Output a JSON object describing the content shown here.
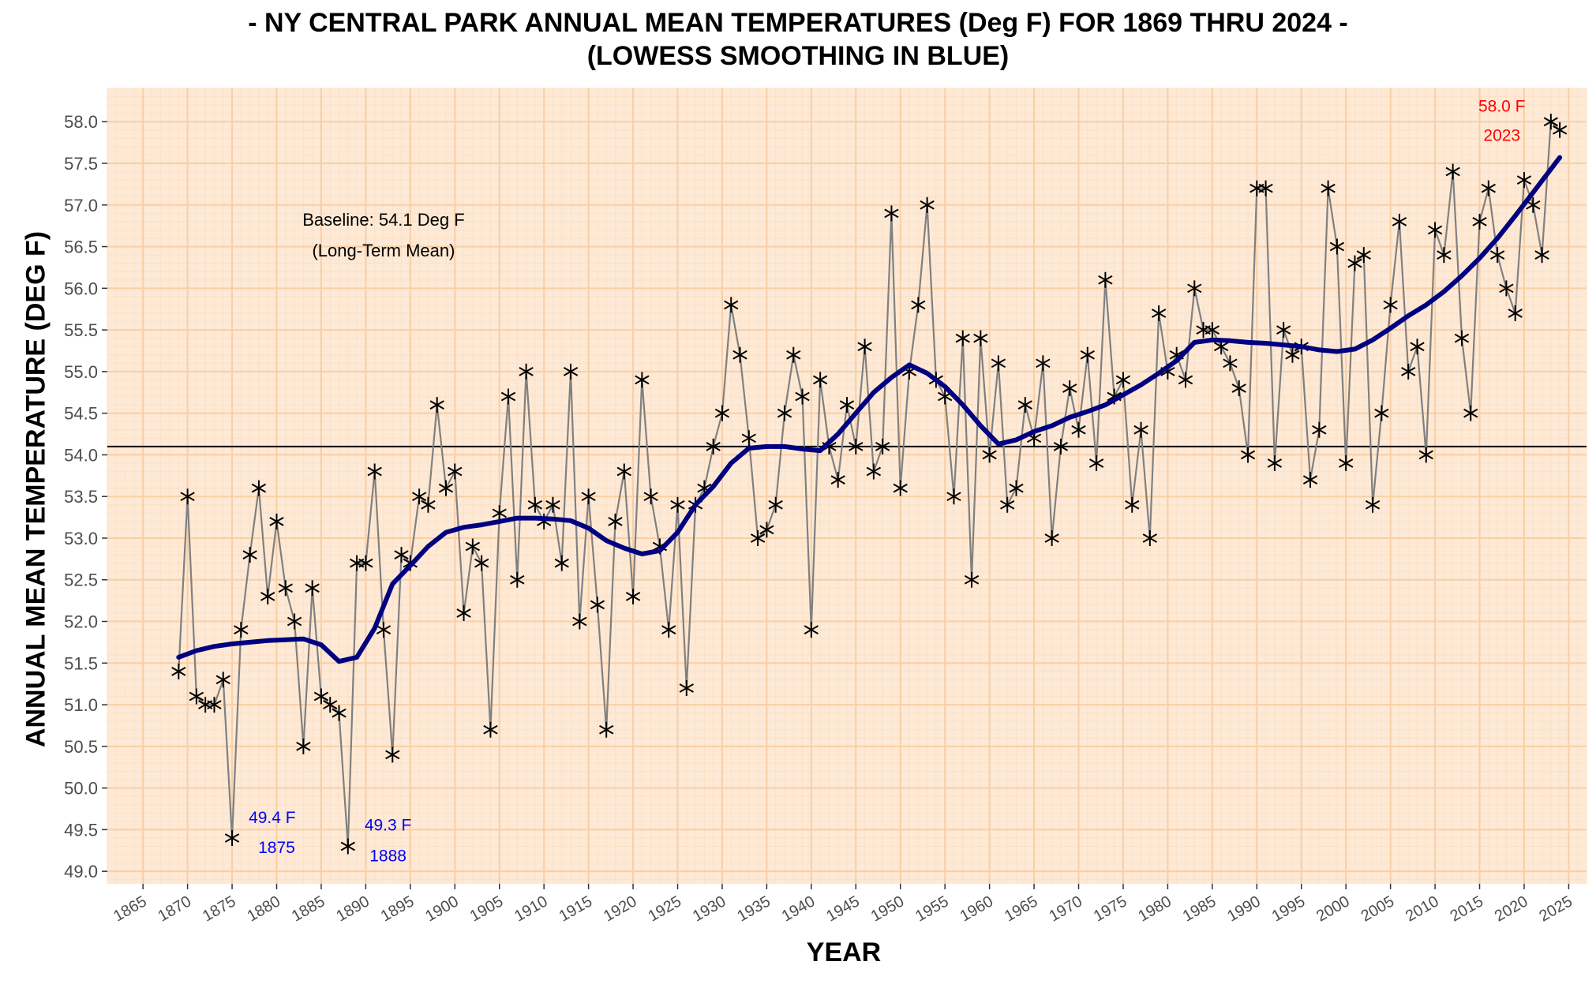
{
  "chart_data": {
    "type": "line",
    "title_line1": "- NY CENTRAL PARK ANNUAL MEAN TEMPERATURES (Deg F) FOR 1869 THRU 2024 -",
    "title_line2": "(LOWESS SMOOTHING IN BLUE)",
    "xlabel": "YEAR",
    "ylabel": "ANNUAL MEAN TEMPERATURE (DEG F)",
    "xlim": [
      1861,
      2027
    ],
    "ylim": [
      48.85,
      58.4
    ],
    "x_ticks": [
      1865,
      1870,
      1875,
      1880,
      1885,
      1890,
      1895,
      1900,
      1905,
      1910,
      1915,
      1920,
      1925,
      1930,
      1935,
      1940,
      1945,
      1950,
      1955,
      1960,
      1965,
      1970,
      1975,
      1980,
      1985,
      1990,
      1995,
      2000,
      2005,
      2010,
      2015,
      2020,
      2025
    ],
    "y_ticks": [
      "49.0",
      "49.5",
      "50.0",
      "50.5",
      "51.0",
      "51.5",
      "52.0",
      "52.5",
      "53.0",
      "53.5",
      "54.0",
      "54.5",
      "55.0",
      "55.5",
      "56.0",
      "56.5",
      "57.0",
      "57.5",
      "58.0"
    ],
    "grid": true,
    "colors": {
      "panel_background": "#fde9d5",
      "grid_major": "#f9cfa5",
      "grid_minor": "#fbe0c4",
      "raw_line": "#808080",
      "marker": "#000000",
      "smooth_line": "#000080",
      "baseline": "#000000",
      "min_annotation": "#0000ff",
      "max_annotation": "#ff0000"
    },
    "series": [
      {
        "name": "annual mean",
        "x": [
          1869,
          1870,
          1871,
          1872,
          1873,
          1874,
          1875,
          1876,
          1877,
          1878,
          1879,
          1880,
          1881,
          1882,
          1883,
          1884,
          1885,
          1886,
          1887,
          1888,
          1889,
          1890,
          1891,
          1892,
          1893,
          1894,
          1895,
          1896,
          1897,
          1898,
          1899,
          1900,
          1901,
          1902,
          1903,
          1904,
          1905,
          1906,
          1907,
          1908,
          1909,
          1910,
          1911,
          1912,
          1913,
          1914,
          1915,
          1916,
          1917,
          1918,
          1919,
          1920,
          1921,
          1922,
          1923,
          1924,
          1925,
          1926,
          1927,
          1928,
          1929,
          1930,
          1931,
          1932,
          1933,
          1934,
          1935,
          1936,
          1937,
          1938,
          1939,
          1940,
          1941,
          1942,
          1943,
          1944,
          1945,
          1946,
          1947,
          1948,
          1949,
          1950,
          1951,
          1952,
          1953,
          1954,
          1955,
          1956,
          1957,
          1958,
          1959,
          1960,
          1961,
          1962,
          1963,
          1964,
          1965,
          1966,
          1967,
          1968,
          1969,
          1970,
          1971,
          1972,
          1973,
          1974,
          1975,
          1976,
          1977,
          1978,
          1979,
          1980,
          1981,
          1982,
          1983,
          1984,
          1985,
          1986,
          1987,
          1988,
          1989,
          1990,
          1991,
          1992,
          1993,
          1994,
          1995,
          1996,
          1997,
          1998,
          1999,
          2000,
          2001,
          2002,
          2003,
          2004,
          2005,
          2006,
          2007,
          2008,
          2009,
          2010,
          2011,
          2012,
          2013,
          2014,
          2015,
          2016,
          2017,
          2018,
          2019,
          2020,
          2021,
          2022,
          2023,
          2024
        ],
        "y": [
          51.4,
          53.5,
          51.1,
          51.0,
          51.0,
          51.3,
          49.4,
          51.9,
          52.8,
          53.6,
          52.3,
          53.2,
          52.4,
          52.0,
          50.5,
          52.4,
          51.1,
          51.0,
          50.9,
          49.3,
          52.7,
          52.7,
          53.8,
          51.9,
          50.4,
          52.8,
          52.7,
          53.5,
          53.4,
          54.6,
          53.6,
          53.8,
          52.1,
          52.9,
          52.7,
          50.7,
          53.3,
          54.7,
          52.5,
          55.0,
          53.4,
          53.2,
          53.4,
          52.7,
          55.0,
          52.0,
          53.5,
          52.2,
          50.7,
          53.2,
          53.8,
          52.3,
          54.9,
          53.5,
          52.9,
          51.9,
          53.4,
          51.2,
          53.4,
          53.6,
          54.1,
          54.5,
          55.8,
          55.2,
          54.2,
          53.0,
          53.1,
          53.4,
          54.5,
          55.2,
          54.7,
          51.9,
          54.9,
          54.1,
          53.7,
          54.6,
          54.1,
          55.3,
          53.8,
          54.1,
          56.9,
          53.6,
          55.0,
          55.8,
          57.0,
          54.9,
          54.7,
          53.5,
          55.4,
          52.5,
          55.4,
          54.0,
          55.1,
          53.4,
          53.6,
          54.6,
          54.2,
          55.1,
          53.0,
          54.1,
          54.8,
          54.3,
          55.2,
          53.9,
          56.1,
          54.7,
          54.9,
          53.4,
          54.3,
          53.0,
          55.7,
          55.0,
          55.2,
          54.9,
          56.0,
          55.5,
          55.5,
          55.3,
          55.1,
          54.8,
          54.0,
          57.2,
          57.2,
          53.9,
          55.5,
          55.2,
          55.3,
          53.7,
          54.3,
          57.2,
          56.5,
          53.9,
          56.3,
          56.4,
          53.4,
          54.5,
          55.8,
          56.8,
          55.0,
          55.3,
          54.0,
          56.7,
          56.4,
          57.4,
          55.4,
          54.5,
          56.8,
          57.2,
          56.4,
          56.0,
          55.7,
          57.3,
          57.0,
          56.4,
          58.0,
          57.9
        ]
      },
      {
        "name": "LOWESS smoothing",
        "x": [
          1869,
          1871,
          1873,
          1875,
          1877,
          1879,
          1881,
          1883,
          1885,
          1887,
          1889,
          1891,
          1893,
          1895,
          1897,
          1899,
          1901,
          1903,
          1905,
          1907,
          1909,
          1911,
          1913,
          1915,
          1917,
          1919,
          1921,
          1923,
          1925,
          1927,
          1929,
          1931,
          1933,
          1935,
          1937,
          1939,
          1941,
          1943,
          1945,
          1947,
          1949,
          1951,
          1953,
          1955,
          1957,
          1959,
          1961,
          1963,
          1965,
          1967,
          1969,
          1971,
          1973,
          1975,
          1977,
          1979,
          1981,
          1983,
          1985,
          1987,
          1989,
          1991,
          1993,
          1995,
          1997,
          1999,
          2001,
          2003,
          2005,
          2007,
          2009,
          2011,
          2013,
          2015,
          2017,
          2019,
          2021,
          2024
        ],
        "y": [
          51.57,
          51.65,
          51.7,
          51.73,
          51.75,
          51.77,
          51.78,
          51.79,
          51.72,
          51.52,
          51.57,
          51.92,
          52.45,
          52.67,
          52.9,
          53.07,
          53.13,
          53.16,
          53.2,
          53.24,
          53.24,
          53.23,
          53.21,
          53.12,
          52.97,
          52.88,
          52.81,
          52.85,
          53.07,
          53.4,
          53.62,
          53.9,
          54.08,
          54.1,
          54.1,
          54.07,
          54.05,
          54.25,
          54.5,
          54.75,
          54.93,
          55.08,
          54.98,
          54.82,
          54.6,
          54.35,
          54.13,
          54.18,
          54.28,
          54.35,
          54.45,
          54.52,
          54.6,
          54.72,
          54.84,
          54.98,
          55.13,
          55.35,
          55.38,
          55.37,
          55.35,
          55.34,
          55.32,
          55.3,
          55.26,
          55.24,
          55.27,
          55.38,
          55.52,
          55.67,
          55.8,
          55.96,
          56.15,
          56.36,
          56.6,
          56.87,
          57.15,
          57.57
        ]
      }
    ],
    "baseline": {
      "value": 54.1,
      "label_line1": "Baseline: 54.1 Deg F",
      "label_line2": "(Long-Term Mean)"
    },
    "annotations": [
      {
        "kind": "min",
        "year": 1875,
        "value_label": "49.4 F",
        "year_label": "1875"
      },
      {
        "kind": "min",
        "year": 1888,
        "value_label": "49.3 F",
        "year_label": "1888"
      },
      {
        "kind": "max",
        "year": 2023,
        "value_label": "58.0 F",
        "year_label": "2023"
      }
    ]
  }
}
